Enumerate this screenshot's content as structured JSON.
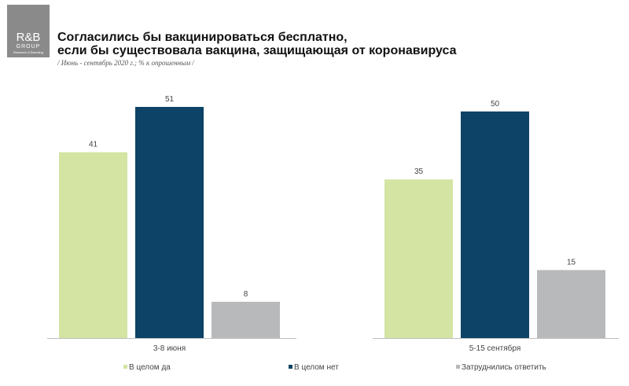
{
  "logo": {
    "main": "R&B",
    "sub": "GROUP",
    "tag": "Research & Branding"
  },
  "title_line1": "Согласились бы вакцинироваться бесплатно,",
  "title_line2": "если бы существовала вакцина, защищающая от коронавируса",
  "subtitle": "/ Июнь - сентябрь 2020 г.; % к опрошенным /",
  "chart_data": {
    "type": "bar",
    "categories": [
      "3-8 июня",
      "5-15 сентября"
    ],
    "series": [
      {
        "name": "В целом да",
        "values": [
          41,
          35
        ],
        "color": "#d4e4a3"
      },
      {
        "name": "В целом нет",
        "values": [
          51,
          50
        ],
        "color": "#0d4366"
      },
      {
        "name": "Затруднились ответить",
        "values": [
          8,
          15
        ],
        "color": "#b8b9bb"
      }
    ],
    "ylim": [
      0,
      51
    ],
    "grid": false,
    "legend": "bottom"
  }
}
